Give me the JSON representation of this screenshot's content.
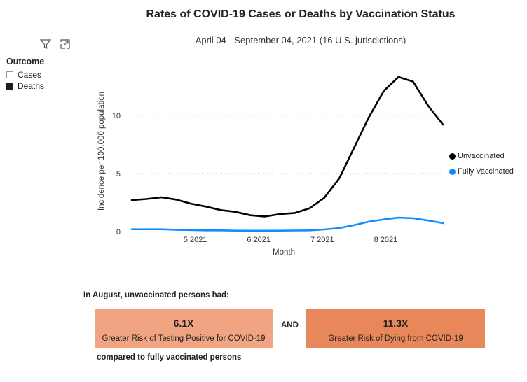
{
  "header": {
    "title": "Rates of COVID-19 Cases or Deaths by Vaccination Status",
    "subtitle": "April 04 - September 04, 2021 (16 U.S. jurisdictions)"
  },
  "toolbar": {
    "filter_icon": "filter-icon",
    "focus_icon": "focus-mode-icon"
  },
  "slicer": {
    "title": "Outcome",
    "items": [
      {
        "label": "Cases",
        "checked": false
      },
      {
        "label": "Deaths",
        "checked": true
      }
    ]
  },
  "legend": {
    "items": [
      {
        "label": "Unvaccinated",
        "color": "#000000"
      },
      {
        "label": "Fully Vaccinated",
        "color": "#118DFF"
      }
    ]
  },
  "chart_data": {
    "type": "line",
    "title": "Rates of COVID-19 Cases or Deaths by Vaccination Status",
    "xlabel": "Month",
    "ylabel": "Incidence per 100,000 population",
    "ylim": [
      0,
      13.3
    ],
    "yticks": [
      0,
      5,
      10
    ],
    "xticks": [
      {
        "label": "5 2021",
        "month": 1.0
      },
      {
        "label": "6 2021",
        "month": 2.0
      },
      {
        "label": "7 2021",
        "month": 3.0
      },
      {
        "label": "8 2021",
        "month": 4.0
      }
    ],
    "grid": true,
    "legend_position": "right",
    "x": [
      0.0,
      0.23,
      0.47,
      0.7,
      0.93,
      1.17,
      1.4,
      1.63,
      1.87,
      2.1,
      2.33,
      2.57,
      2.8,
      3.03,
      3.27,
      3.5,
      3.73,
      3.97,
      4.2,
      4.43,
      4.67,
      4.9
    ],
    "series": [
      {
        "name": "Unvaccinated",
        "color": "#000000",
        "values": [
          2.7,
          2.8,
          2.95,
          2.75,
          2.4,
          2.15,
          1.85,
          1.7,
          1.4,
          1.3,
          1.5,
          1.6,
          2.0,
          2.9,
          4.6,
          7.2,
          9.8,
          12.1,
          13.3,
          12.9,
          10.8,
          9.2
        ]
      },
      {
        "name": "Fully Vaccinated",
        "color": "#118DFF",
        "values": [
          0.2,
          0.2,
          0.2,
          0.15,
          0.13,
          0.1,
          0.1,
          0.08,
          0.07,
          0.07,
          0.08,
          0.09,
          0.1,
          0.18,
          0.3,
          0.55,
          0.85,
          1.05,
          1.2,
          1.15,
          0.95,
          0.72
        ]
      }
    ]
  },
  "callout": {
    "intro": "In August, unvaccinated persons had:",
    "and": "AND",
    "outro": "compared to fully vaccinated persons",
    "boxes": [
      {
        "value": "6.1X",
        "label": "Greater Risk of Testing Positive for COVID-19",
        "color": "#F0A482"
      },
      {
        "value": "11.3X",
        "label": "Greater Risk of Dying from COVID-19",
        "color": "#E8875A"
      }
    ]
  }
}
